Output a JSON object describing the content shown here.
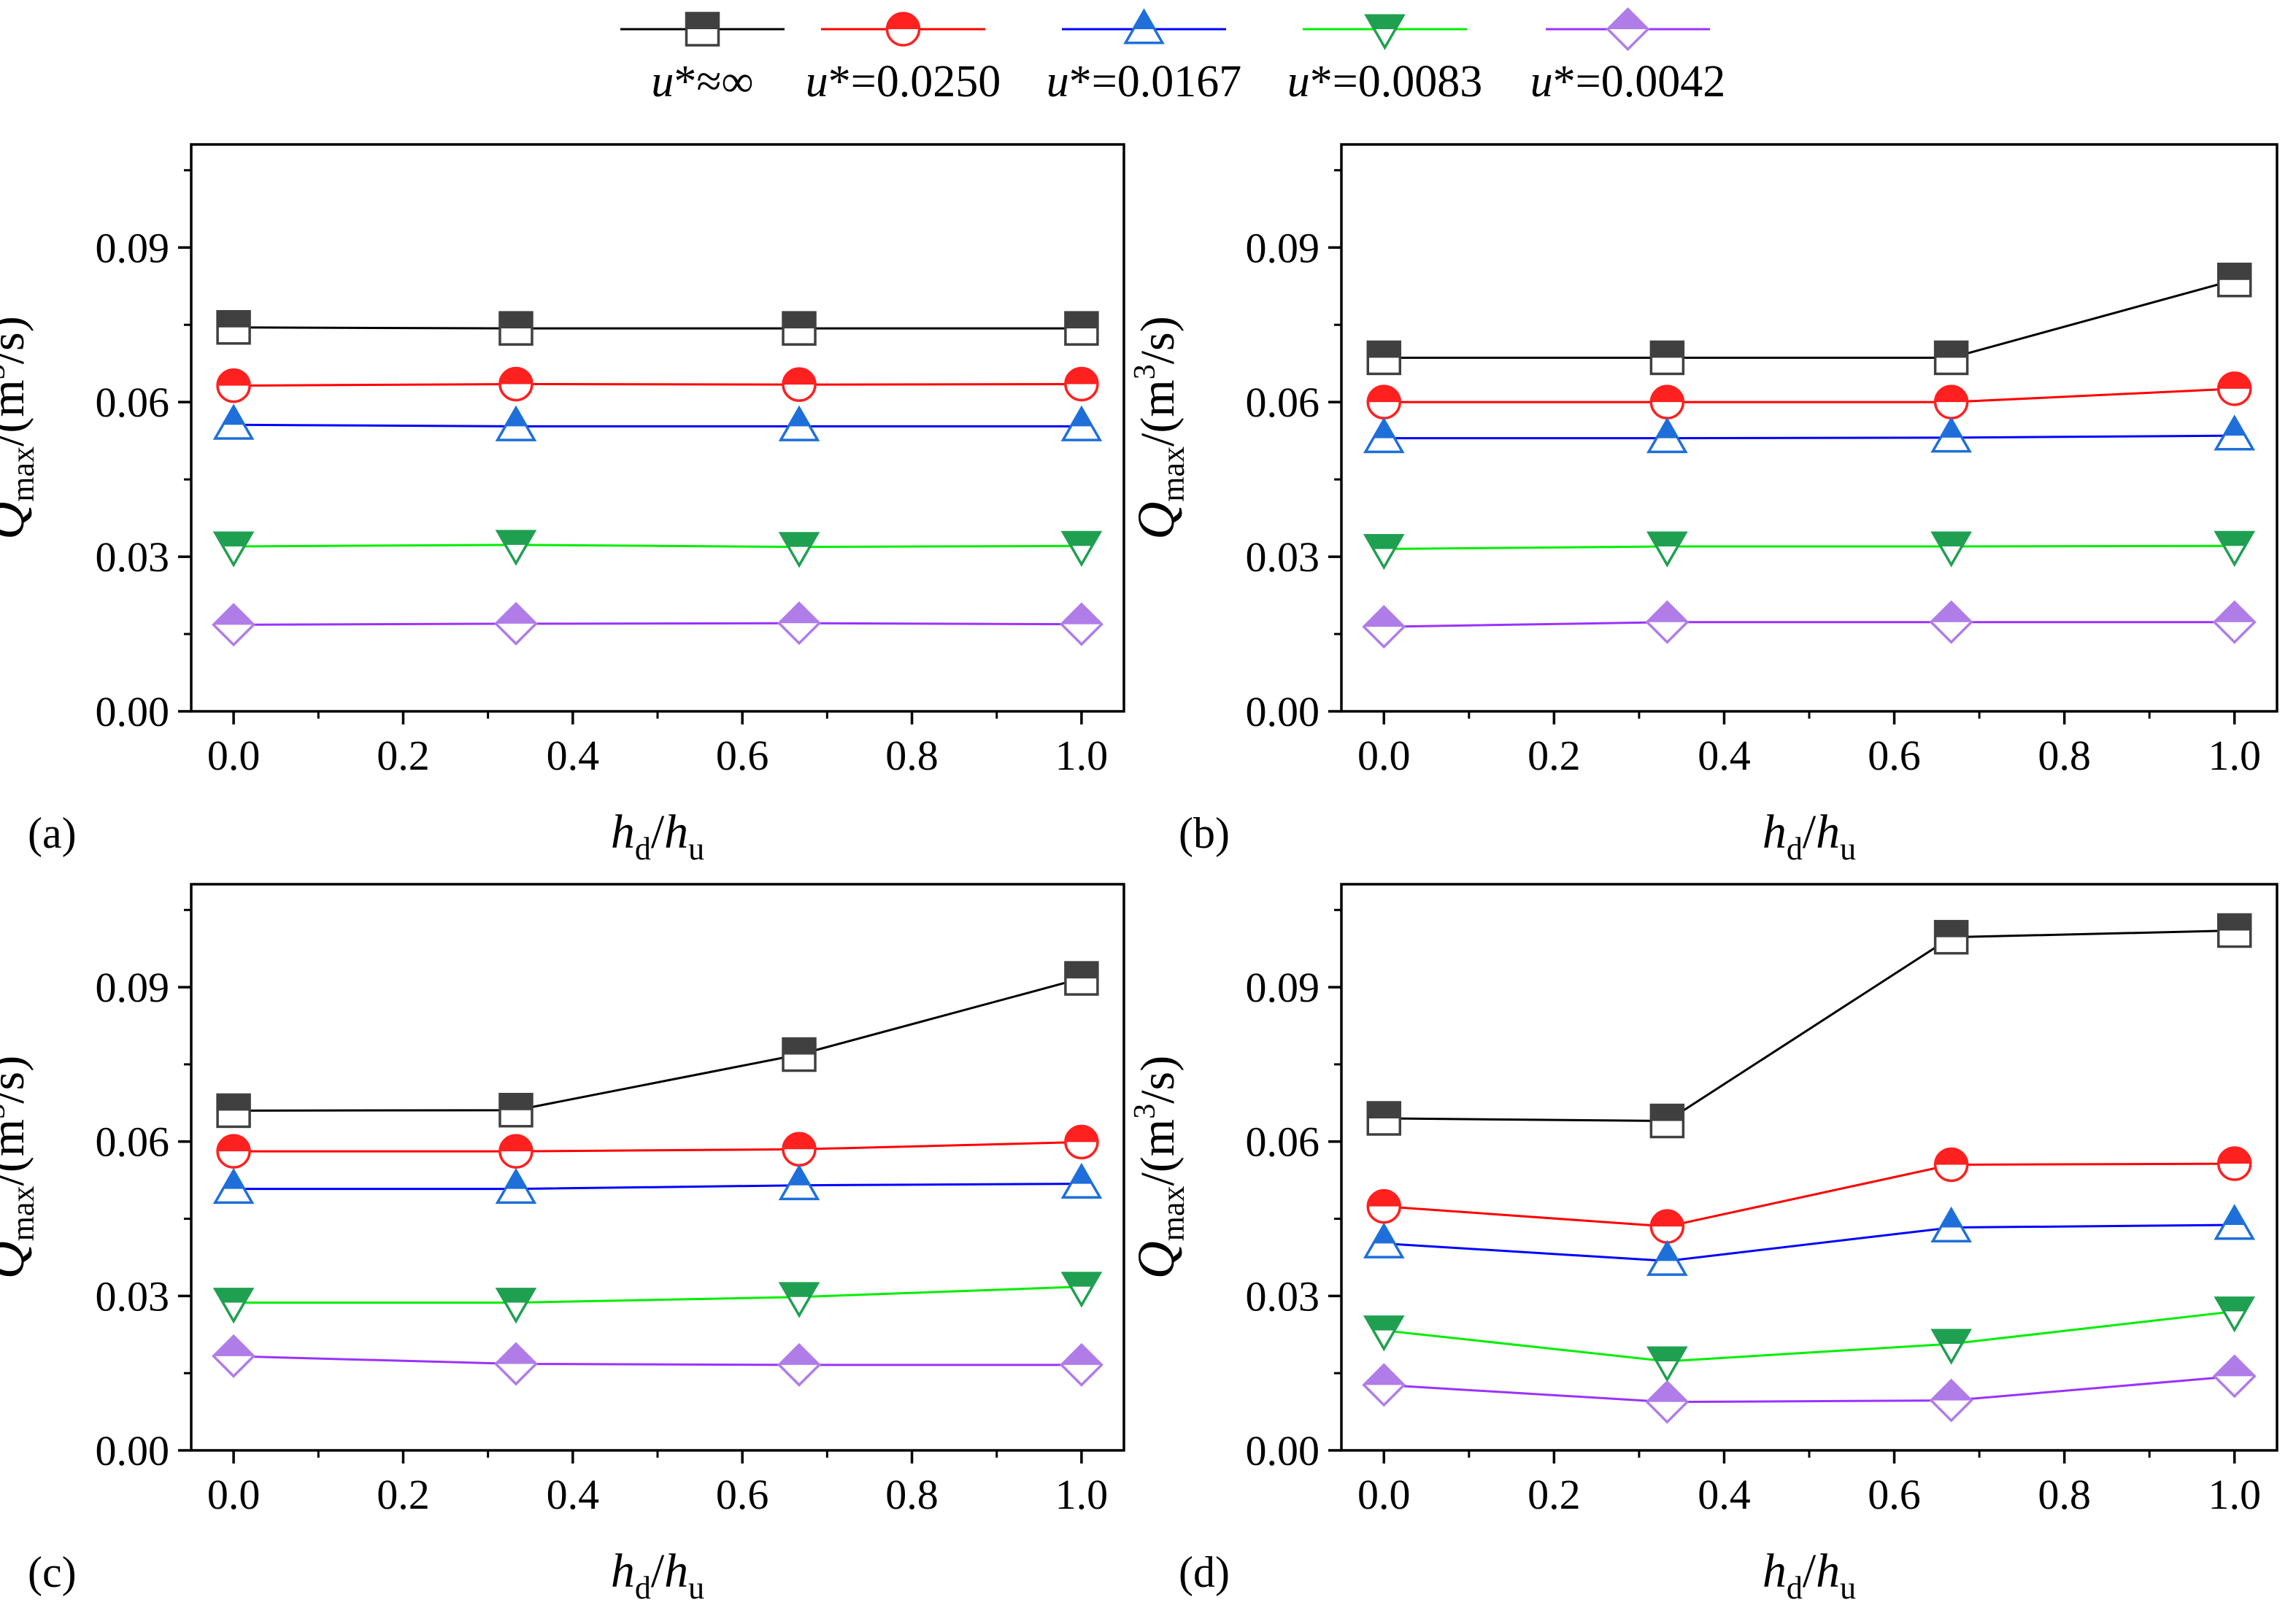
{
  "figure": {
    "legend": [
      {
        "prefix": "u",
        "suffix": "*≈∞",
        "color": "#000000",
        "marker_color": "#404040",
        "marker": "square"
      },
      {
        "prefix": "u",
        "suffix": "*=0.0250",
        "color": "#ff0000",
        "marker_color": "#ff2020",
        "marker": "circle"
      },
      {
        "prefix": "u",
        "suffix": "*=0.0167",
        "color": "#0000ff",
        "marker_color": "#1e6fd9",
        "marker": "triangle-up"
      },
      {
        "prefix": "u",
        "suffix": "*=0.0083",
        "color": "#00ee00",
        "marker_color": "#1fa050",
        "marker": "triangle-down"
      },
      {
        "prefix": "u",
        "suffix": "*=0.0042",
        "color": "#9933ff",
        "marker_color": "#b07ce8",
        "marker": "diamond"
      }
    ],
    "ylabel": {
      "main": "Q",
      "sub": "max",
      "unit_open": "/(m",
      "sup": "3",
      "unit_close": "/s)"
    },
    "xlabel": {
      "a": "h",
      "a_sub": "d",
      "slash": "/",
      "b": "h",
      "b_sub": "u"
    }
  },
  "chart_data": [
    {
      "type": "line",
      "panel": "(a)",
      "x": [
        0.0,
        0.333,
        0.667,
        1.0
      ],
      "xlim": [
        -0.05,
        1.05
      ],
      "ylim": [
        0.0,
        0.11
      ],
      "xticks": [
        "0.0",
        "0.2",
        "0.4",
        "0.6",
        "0.8",
        "1.0"
      ],
      "yticks": [
        "0.00",
        "0.03",
        "0.06",
        "0.09"
      ],
      "series": [
        {
          "name": "u*≈∞",
          "values": [
            0.0745,
            0.0743,
            0.0743,
            0.0743
          ]
        },
        {
          "name": "u*=0.0250",
          "values": [
            0.0632,
            0.0635,
            0.0634,
            0.0635
          ]
        },
        {
          "name": "u*=0.0167",
          "values": [
            0.0556,
            0.0553,
            0.0553,
            0.0553
          ]
        },
        {
          "name": "u*=0.0083",
          "values": [
            0.032,
            0.0323,
            0.0319,
            0.0321
          ]
        },
        {
          "name": "u*=0.0042",
          "values": [
            0.0168,
            0.017,
            0.0171,
            0.0169
          ]
        }
      ]
    },
    {
      "type": "line",
      "panel": "(b)",
      "x": [
        0.0,
        0.333,
        0.667,
        1.0
      ],
      "xlim": [
        -0.05,
        1.05
      ],
      "ylim": [
        0.0,
        0.11
      ],
      "xticks": [
        "0.0",
        "0.2",
        "0.4",
        "0.6",
        "0.8",
        "1.0"
      ],
      "yticks": [
        "0.00",
        "0.03",
        "0.06",
        "0.09"
      ],
      "series": [
        {
          "name": "u*≈∞",
          "values": [
            0.0686,
            0.0686,
            0.0686,
            0.0837
          ]
        },
        {
          "name": "u*=0.0250",
          "values": [
            0.06,
            0.06,
            0.06,
            0.0626
          ]
        },
        {
          "name": "u*=0.0167",
          "values": [
            0.053,
            0.053,
            0.0531,
            0.0535
          ]
        },
        {
          "name": "u*=0.0083",
          "values": [
            0.0315,
            0.032,
            0.032,
            0.0321
          ]
        },
        {
          "name": "u*=0.0042",
          "values": [
            0.0164,
            0.0173,
            0.0173,
            0.0173
          ]
        }
      ]
    },
    {
      "type": "line",
      "panel": "(c)",
      "x": [
        0.0,
        0.333,
        0.667,
        1.0
      ],
      "xlim": [
        -0.05,
        1.05
      ],
      "ylim": [
        0.0,
        0.11
      ],
      "xticks": [
        "0.0",
        "0.2",
        "0.4",
        "0.6",
        "0.8",
        "1.0"
      ],
      "yticks": [
        "0.00",
        "0.03",
        "0.06",
        "0.09"
      ],
      "series": [
        {
          "name": "u*≈∞",
          "values": [
            0.066,
            0.0661,
            0.0769,
            0.0917
          ]
        },
        {
          "name": "u*=0.0250",
          "values": [
            0.0581,
            0.0581,
            0.0585,
            0.0599
          ]
        },
        {
          "name": "u*=0.0167",
          "values": [
            0.0508,
            0.0508,
            0.0515,
            0.0518
          ]
        },
        {
          "name": "u*=0.0083",
          "values": [
            0.0287,
            0.0287,
            0.0298,
            0.0318
          ]
        },
        {
          "name": "u*=0.0042",
          "values": [
            0.0183,
            0.0168,
            0.0166,
            0.0166
          ]
        }
      ]
    },
    {
      "type": "line",
      "panel": "(d)",
      "x": [
        0.0,
        0.333,
        0.667,
        1.0
      ],
      "xlim": [
        -0.05,
        1.05
      ],
      "ylim": [
        0.0,
        0.11
      ],
      "xticks": [
        "0.0",
        "0.2",
        "0.4",
        "0.6",
        "0.8",
        "1.0"
      ],
      "yticks": [
        "0.00",
        "0.03",
        "0.06",
        "0.09"
      ],
      "series": [
        {
          "name": "u*≈∞",
          "values": [
            0.0645,
            0.064,
            0.0997,
            0.101
          ]
        },
        {
          "name": "u*=0.0250",
          "values": [
            0.0474,
            0.0435,
            0.0555,
            0.0557
          ]
        },
        {
          "name": "u*=0.0167",
          "values": [
            0.0402,
            0.0368,
            0.0433,
            0.0438
          ]
        },
        {
          "name": "u*=0.0083",
          "values": [
            0.0233,
            0.0173,
            0.0207,
            0.027
          ]
        },
        {
          "name": "u*=0.0042",
          "values": [
            0.0127,
            0.0094,
            0.0097,
            0.0144
          ]
        }
      ]
    }
  ]
}
